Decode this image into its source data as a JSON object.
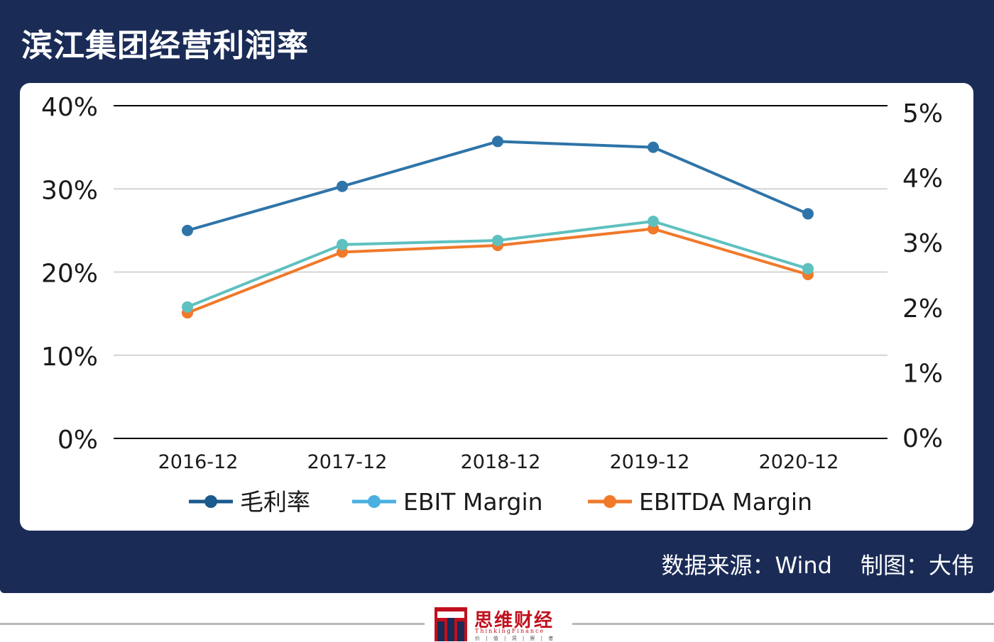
{
  "header": {
    "title": "滨江集团经营利润率"
  },
  "footer": {
    "source": "数据来源：Wind",
    "author": "制图：大伟"
  },
  "brand": {
    "name": "思维财经",
    "english": "ThinkingFinance",
    "slogan": "价 | 值 | 洞 | 察 | 者"
  },
  "colors": {
    "background": "#1a2b56",
    "series1": "#2e74a8",
    "series2": "#5fc0c0",
    "series3": "#f0792a"
  },
  "chart_data": {
    "type": "line",
    "title": "",
    "categories": [
      "2016-12",
      "2017-12",
      "2018-12",
      "2019-12",
      "2020-12"
    ],
    "y_left": {
      "ticks": [
        "0%",
        "10%",
        "20%",
        "30%",
        "40%"
      ],
      "range": [
        0,
        40
      ]
    },
    "y_right": {
      "ticks": [
        "0%",
        "1%",
        "2%",
        "3%",
        "4%",
        "5%"
      ],
      "range": [
        0,
        5
      ]
    },
    "grid": true,
    "legend_position": "bottom",
    "series": [
      {
        "name": "毛利率",
        "values": [
          25.0,
          30.3,
          35.7,
          35.0,
          27.0
        ]
      },
      {
        "name": "EBIT Margin",
        "values": [
          15.8,
          23.3,
          23.8,
          26.1,
          20.4
        ]
      },
      {
        "name": "EBITDA Margin",
        "values": [
          15.1,
          22.4,
          23.2,
          25.2,
          19.7
        ]
      }
    ]
  }
}
